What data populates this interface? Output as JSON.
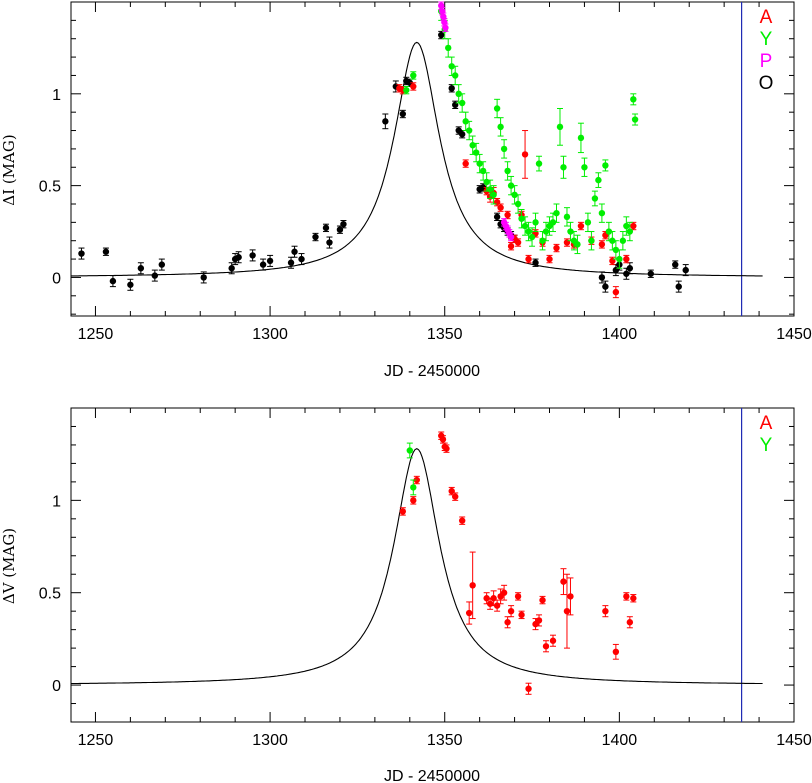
{
  "chart_data": [
    {
      "type": "scatter",
      "xlabel": "JD - 2450000",
      "ylabel": "ΔI (MAG)",
      "xlim": [
        1243,
        1450
      ],
      "ylim": [
        -0.21,
        1.5
      ],
      "x_ticks": [
        1250,
        1300,
        1350,
        1400,
        1450
      ],
      "y_ticks": [
        0,
        0.5,
        1
      ],
      "vline": {
        "x": 1435,
        "color": "#1f2ab4"
      },
      "legend": {
        "placement": "top-right",
        "entries": [
          {
            "label": "A",
            "color": "#ff0000"
          },
          {
            "label": "Y",
            "color": "#00ee00"
          },
          {
            "label": "P",
            "color": "#ff00ff"
          },
          {
            "label": "O",
            "color": "#000000"
          }
        ]
      },
      "model_curve": {
        "peak_x": 1342,
        "peak_y": 1.28,
        "halfwidth": 8,
        "x_range": [
          1243,
          1441
        ],
        "color": "#000000"
      },
      "series": [
        {
          "name": "O",
          "color": "#000000",
          "points": [
            [
              1246,
              0.13,
              0.03
            ],
            [
              1253,
              0.14,
              0.02
            ],
            [
              1255,
              -0.02,
              0.03
            ],
            [
              1260,
              -0.04,
              0.03
            ],
            [
              1263,
              0.05,
              0.03
            ],
            [
              1267,
              0.01,
              0.03
            ],
            [
              1269,
              0.07,
              0.03
            ],
            [
              1281,
              0.0,
              0.03
            ],
            [
              1289,
              0.05,
              0.03
            ],
            [
              1290,
              0.1,
              0.03
            ],
            [
              1291,
              0.11,
              0.03
            ],
            [
              1295,
              0.12,
              0.03
            ],
            [
              1298,
              0.07,
              0.03
            ],
            [
              1300,
              0.09,
              0.03
            ],
            [
              1306,
              0.08,
              0.03
            ],
            [
              1307,
              0.14,
              0.03
            ],
            [
              1309,
              0.1,
              0.03
            ],
            [
              1313,
              0.22,
              0.02
            ],
            [
              1316,
              0.27,
              0.02
            ],
            [
              1317,
              0.19,
              0.03
            ],
            [
              1320,
              0.26,
              0.02
            ],
            [
              1321,
              0.29,
              0.02
            ],
            [
              1333,
              0.85,
              0.04
            ],
            [
              1336,
              1.04,
              0.03
            ],
            [
              1338,
              0.89,
              0.02
            ],
            [
              1339,
              1.07,
              0.02
            ],
            [
              1340,
              1.06,
              0.02
            ],
            [
              1349,
              1.32,
              0.02
            ],
            [
              1352,
              1.03,
              0.02
            ],
            [
              1353,
              0.94,
              0.02
            ],
            [
              1354,
              0.8,
              0.02
            ],
            [
              1355,
              0.78,
              0.02
            ],
            [
              1360,
              0.48,
              0.02
            ],
            [
              1361,
              0.49,
              0.02
            ],
            [
              1365,
              0.33,
              0.02
            ],
            [
              1366,
              0.29,
              0.02
            ],
            [
              1367,
              0.27,
              0.02
            ],
            [
              1368,
              0.25,
              0.02
            ],
            [
              1369,
              0.23,
              0.02
            ],
            [
              1370,
              0.21,
              0.02
            ],
            [
              1376,
              0.08,
              0.02
            ],
            [
              1395,
              0.0,
              0.03
            ],
            [
              1396,
              -0.05,
              0.03
            ],
            [
              1399,
              0.04,
              0.03
            ],
            [
              1400,
              0.07,
              0.03
            ],
            [
              1402,
              0.02,
              0.03
            ],
            [
              1403,
              0.05,
              0.03
            ],
            [
              1409,
              0.02,
              0.02
            ],
            [
              1416,
              0.07,
              0.02
            ],
            [
              1417,
              -0.05,
              0.03
            ],
            [
              1419,
              0.04,
              0.03
            ]
          ]
        },
        {
          "name": "A",
          "color": "#ff0000",
          "points": [
            [
              1337,
              1.03,
              0.02
            ],
            [
              1338,
              1.02,
              0.02
            ],
            [
              1341,
              1.04,
              0.02
            ],
            [
              1356,
              0.62,
              0.02
            ],
            [
              1362,
              0.47,
              0.02
            ],
            [
              1363,
              0.44,
              0.03
            ],
            [
              1364,
              0.46,
              0.03
            ],
            [
              1365,
              0.41,
              0.02
            ],
            [
              1366,
              0.38,
              0.02
            ],
            [
              1368,
              0.34,
              0.02
            ],
            [
              1369,
              0.17,
              0.02
            ],
            [
              1370,
              0.21,
              0.02
            ],
            [
              1371,
              0.19,
              0.02
            ],
            [
              1372,
              0.34,
              0.02
            ],
            [
              1373,
              0.67,
              0.13
            ],
            [
              1374,
              0.1,
              0.02
            ],
            [
              1376,
              0.24,
              0.02
            ],
            [
              1378,
              0.19,
              0.02
            ],
            [
              1380,
              0.1,
              0.02
            ],
            [
              1382,
              0.16,
              0.02
            ],
            [
              1385,
              0.19,
              0.02
            ],
            [
              1387,
              0.18,
              0.02
            ],
            [
              1389,
              0.28,
              0.02
            ],
            [
              1392,
              0.2,
              0.02
            ],
            [
              1395,
              0.18,
              0.02
            ],
            [
              1396,
              0.23,
              0.02
            ],
            [
              1398,
              0.09,
              0.02
            ],
            [
              1399,
              -0.08,
              0.03
            ],
            [
              1402,
              0.1,
              0.02
            ],
            [
              1404,
              0.28,
              0.02
            ]
          ]
        },
        {
          "name": "Y",
          "color": "#00ee00",
          "points": [
            [
              1339,
              1.02,
              0.02
            ],
            [
              1341,
              1.1,
              0.02
            ],
            [
              1349,
              1.45,
              0.05
            ],
            [
              1350,
              1.35,
              0.05
            ],
            [
              1351,
              1.25,
              0.05
            ],
            [
              1352,
              1.15,
              0.05
            ],
            [
              1353,
              1.1,
              0.05
            ],
            [
              1354,
              1.0,
              0.05
            ],
            [
              1355,
              0.95,
              0.05
            ],
            [
              1356,
              0.85,
              0.05
            ],
            [
              1357,
              0.8,
              0.05
            ],
            [
              1358,
              0.72,
              0.05
            ],
            [
              1359,
              0.68,
              0.05
            ],
            [
              1360,
              0.62,
              0.05
            ],
            [
              1361,
              0.58,
              0.05
            ],
            [
              1362,
              0.52,
              0.05
            ],
            [
              1363,
              0.48,
              0.05
            ],
            [
              1364,
              0.45,
              0.05
            ],
            [
              1365,
              0.92,
              0.05
            ],
            [
              1366,
              0.82,
              0.05
            ],
            [
              1367,
              0.7,
              0.05
            ],
            [
              1368,
              0.58,
              0.05
            ],
            [
              1369,
              0.5,
              0.05
            ],
            [
              1370,
              0.45,
              0.05
            ],
            [
              1371,
              0.4,
              0.05
            ],
            [
              1372,
              0.32,
              0.05
            ],
            [
              1373,
              0.28,
              0.05
            ],
            [
              1374,
              0.25,
              0.05
            ],
            [
              1375,
              0.22,
              0.05
            ],
            [
              1376,
              0.3,
              0.05
            ],
            [
              1377,
              0.62,
              0.04
            ],
            [
              1378,
              0.2,
              0.05
            ],
            [
              1379,
              0.25,
              0.05
            ],
            [
              1380,
              0.28,
              0.05
            ],
            [
              1381,
              0.3,
              0.05
            ],
            [
              1382,
              0.35,
              0.05
            ],
            [
              1383,
              0.82,
              0.1
            ],
            [
              1384,
              0.6,
              0.06
            ],
            [
              1385,
              0.33,
              0.05
            ],
            [
              1386,
              0.25,
              0.05
            ],
            [
              1387,
              0.2,
              0.05
            ],
            [
              1388,
              0.18,
              0.05
            ],
            [
              1389,
              0.76,
              0.08
            ],
            [
              1390,
              0.6,
              0.05
            ],
            [
              1391,
              0.3,
              0.05
            ],
            [
              1392,
              0.2,
              0.05
            ],
            [
              1393,
              0.43,
              0.04
            ],
            [
              1394,
              0.53,
              0.04
            ],
            [
              1395,
              0.35,
              0.05
            ],
            [
              1396,
              0.61,
              0.03
            ],
            [
              1397,
              0.25,
              0.05
            ],
            [
              1398,
              0.2,
              0.05
            ],
            [
              1399,
              0.15,
              0.05
            ],
            [
              1400,
              0.1,
              0.05
            ],
            [
              1401,
              0.2,
              0.05
            ],
            [
              1402,
              0.28,
              0.05
            ],
            [
              1403,
              0.25,
              0.05
            ],
            [
              1404,
              0.97,
              0.03
            ],
            [
              1404.5,
              0.86,
              0.03
            ]
          ]
        },
        {
          "name": "P",
          "color": "#ff00ff",
          "points": [
            [
              1349,
              1.48,
              0.02
            ],
            [
              1349.3,
              1.45,
              0.02
            ],
            [
              1349.6,
              1.42,
              0.02
            ],
            [
              1349.9,
              1.39,
              0.02
            ],
            [
              1350.2,
              1.36,
              0.02
            ],
            [
              1367,
              0.3,
              0.02
            ],
            [
              1367.5,
              0.28,
              0.02
            ],
            [
              1368,
              0.26,
              0.02
            ],
            [
              1368.5,
              0.24,
              0.02
            ],
            [
              1369,
              0.22,
              0.02
            ]
          ]
        }
      ]
    },
    {
      "type": "scatter",
      "xlabel": "JD - 2450000",
      "ylabel": "ΔV (MAG)",
      "xlim": [
        1243,
        1450
      ],
      "ylim": [
        -0.2,
        1.5
      ],
      "x_ticks": [
        1250,
        1300,
        1350,
        1400,
        1450
      ],
      "y_ticks": [
        0,
        0.5,
        1
      ],
      "vline": {
        "x": 1435,
        "color": "#1f2ab4"
      },
      "legend": {
        "placement": "top-right",
        "entries": [
          {
            "label": "A",
            "color": "#ff0000"
          },
          {
            "label": "Y",
            "color": "#00ee00"
          }
        ]
      },
      "model_curve": {
        "peak_x": 1342,
        "peak_y": 1.28,
        "halfwidth": 8,
        "x_range": [
          1243,
          1441
        ],
        "color": "#000000"
      },
      "series": [
        {
          "name": "A",
          "color": "#ff0000",
          "points": [
            [
              1338,
              0.94,
              0.02
            ],
            [
              1341,
              1.0,
              0.02
            ],
            [
              1342,
              1.11,
              0.02
            ],
            [
              1349,
              1.35,
              0.02
            ],
            [
              1349.5,
              1.33,
              0.02
            ],
            [
              1350,
              1.29,
              0.02
            ],
            [
              1350.5,
              1.28,
              0.02
            ],
            [
              1352,
              1.05,
              0.02
            ],
            [
              1353,
              1.02,
              0.02
            ],
            [
              1355,
              0.89,
              0.02
            ],
            [
              1357,
              0.39,
              0.06
            ],
            [
              1358,
              0.54,
              0.18
            ],
            [
              1362,
              0.47,
              0.03
            ],
            [
              1363,
              0.44,
              0.03
            ],
            [
              1364,
              0.47,
              0.04
            ],
            [
              1365,
              0.43,
              0.03
            ],
            [
              1366,
              0.48,
              0.04
            ],
            [
              1367,
              0.5,
              0.04
            ],
            [
              1368,
              0.34,
              0.03
            ],
            [
              1369,
              0.4,
              0.03
            ],
            [
              1371,
              0.48,
              0.02
            ],
            [
              1372,
              0.38,
              0.02
            ],
            [
              1374,
              -0.02,
              0.03
            ],
            [
              1376,
              0.33,
              0.03
            ],
            [
              1377,
              0.35,
              0.03
            ],
            [
              1378,
              0.46,
              0.02
            ],
            [
              1379,
              0.21,
              0.03
            ],
            [
              1381,
              0.24,
              0.03
            ],
            [
              1384,
              0.56,
              0.07
            ],
            [
              1385,
              0.4,
              0.2
            ],
            [
              1386,
              0.48,
              0.1
            ],
            [
              1396,
              0.4,
              0.03
            ],
            [
              1399,
              0.18,
              0.04
            ],
            [
              1402,
              0.48,
              0.02
            ],
            [
              1403,
              0.34,
              0.03
            ],
            [
              1404,
              0.47,
              0.02
            ]
          ]
        },
        {
          "name": "Y",
          "color": "#00ee00",
          "points": [
            [
              1340,
              1.27,
              0.04
            ],
            [
              1341,
              1.07,
              0.04
            ]
          ]
        }
      ]
    }
  ]
}
